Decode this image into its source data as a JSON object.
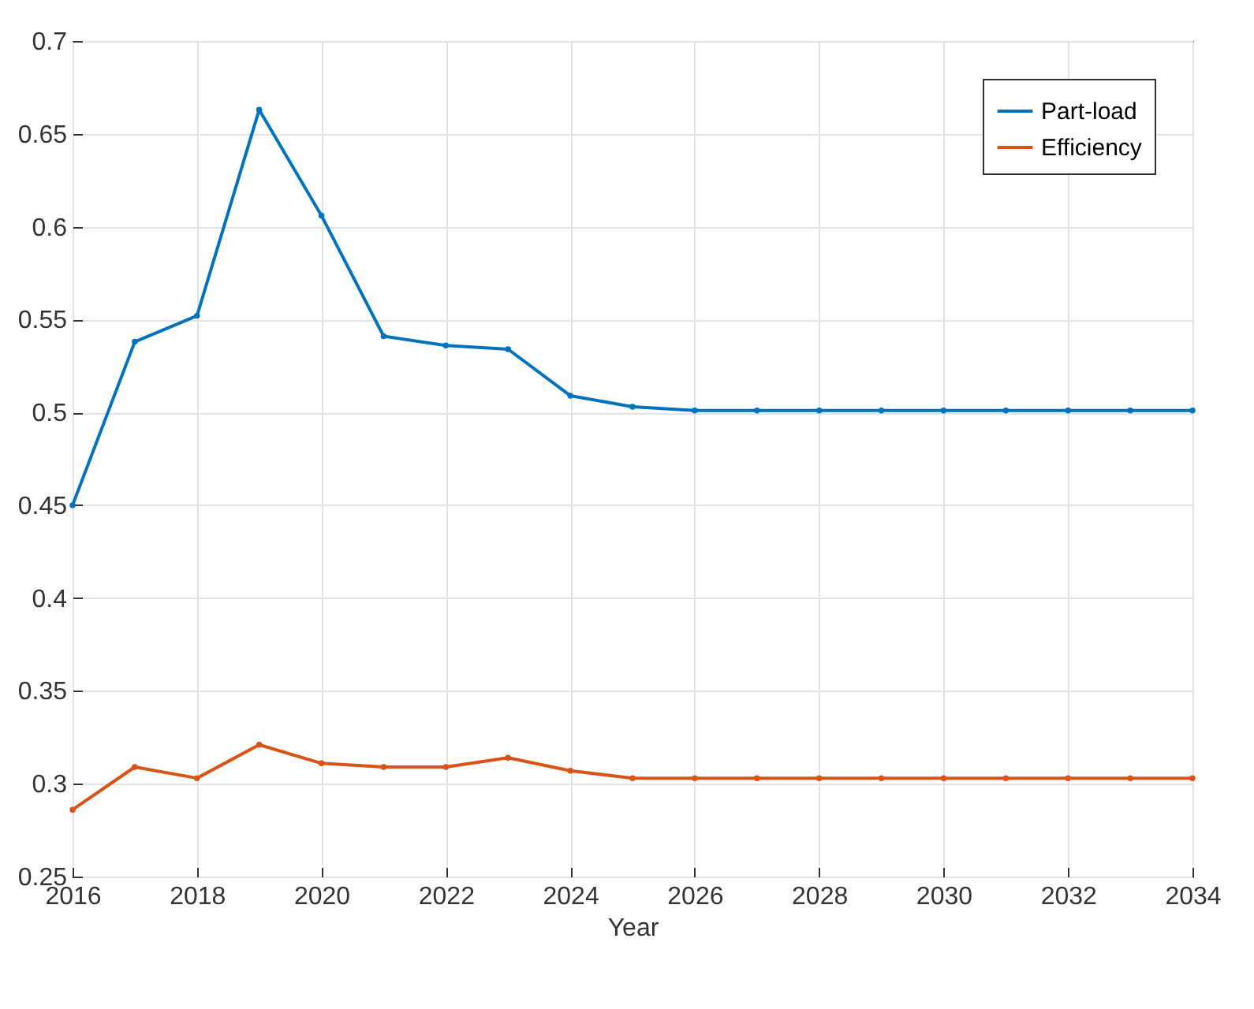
{
  "chart_data": {
    "type": "line",
    "xlabel": "Year",
    "x": [
      2016,
      2017,
      2018,
      2019,
      2020,
      2021,
      2022,
      2023,
      2024,
      2025,
      2026,
      2027,
      2028,
      2029,
      2030,
      2031,
      2032,
      2033,
      2034
    ],
    "series": [
      {
        "name": "Part-load",
        "color": "#0072bd",
        "values": [
          0.45,
          0.538,
          0.552,
          0.663,
          0.606,
          0.541,
          0.536,
          0.534,
          0.509,
          0.503,
          0.501,
          0.501,
          0.501,
          0.501,
          0.501,
          0.501,
          0.501,
          0.501,
          0.501
        ]
      },
      {
        "name": "Efficiency",
        "color": "#d95319",
        "values": [
          0.286,
          0.309,
          0.303,
          0.321,
          0.311,
          0.309,
          0.309,
          0.314,
          0.307,
          0.303,
          0.303,
          0.303,
          0.303,
          0.303,
          0.303,
          0.303,
          0.303,
          0.303,
          0.303
        ]
      }
    ],
    "xlim": [
      2016,
      2034
    ],
    "xticks": [
      2016,
      2018,
      2020,
      2022,
      2024,
      2026,
      2028,
      2030,
      2032,
      2034
    ],
    "ylim": [
      0.25,
      0.7
    ],
    "yticks": [
      0.25,
      0.3,
      0.35,
      0.4,
      0.45,
      0.5,
      0.55,
      0.6,
      0.65,
      0.7
    ],
    "grid": true,
    "legend": "top right",
    "marker": "circle",
    "line_style": "solid"
  }
}
